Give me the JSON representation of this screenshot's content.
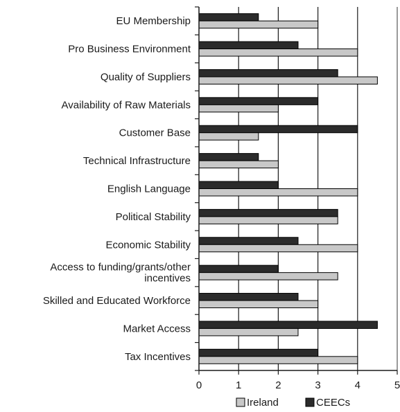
{
  "chart_data": {
    "type": "bar",
    "orientation": "horizontal",
    "categories": [
      [
        "EU Membership"
      ],
      [
        "Pro Business Environment"
      ],
      [
        "Quality of Suppliers"
      ],
      [
        "Availability of Raw Materials"
      ],
      [
        "Customer Base"
      ],
      [
        "Technical Infrastructure"
      ],
      [
        "English Language"
      ],
      [
        "Political Stability"
      ],
      [
        "Economic Stability"
      ],
      [
        "Access to funding/grants/other",
        "incentives"
      ],
      [
        "Skilled and Educated Workforce"
      ],
      [
        "Market Access"
      ],
      [
        "Tax Incentives"
      ]
    ],
    "series": [
      {
        "name": "CEECs",
        "color": "#2b2b2b",
        "values": [
          1.5,
          2.5,
          3.5,
          3,
          4,
          1.5,
          2,
          3.5,
          2.5,
          2,
          2.5,
          4.5,
          3
        ]
      },
      {
        "name": "Ireland",
        "color": "#c8c8c8",
        "values": [
          3,
          4,
          4.5,
          2,
          1.5,
          2,
          4,
          3.5,
          4,
          3.5,
          3,
          2.5,
          4
        ]
      }
    ],
    "xlim": [
      0,
      5
    ],
    "xticks": [
      "0",
      "1",
      "2",
      "3",
      "4",
      "5"
    ],
    "grid": "vertical",
    "legend": {
      "position": "bottom",
      "entries": [
        {
          "label": "Ireland",
          "color": "#c8c8c8"
        },
        {
          "label": "CEECs",
          "color": "#2b2b2b"
        }
      ]
    }
  }
}
